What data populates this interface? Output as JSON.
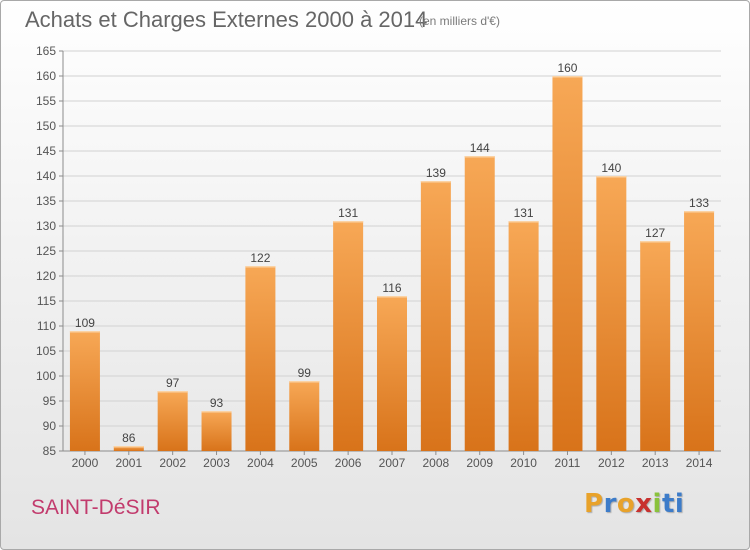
{
  "header": {
    "title": "Achats et Charges Externes 2000 à 2014",
    "subtitle": "(en milliers d'€)"
  },
  "footer": {
    "commune": "SAINT-DéSIR",
    "brand": "Proxiti"
  },
  "colors": {
    "bar_light": "#f7a856",
    "bar_dark": "#d8731a",
    "commune": "#c23b6d",
    "brand_letters": [
      "#e8a22a",
      "#3d7cc9",
      "#e8a22a",
      "#c8322f",
      "#8ac23c",
      "#3d7cc9",
      "#3d7cc9"
    ]
  },
  "chart_data": {
    "type": "bar",
    "title": "Achats et Charges Externes 2000 à 2014",
    "subtitle": "(en milliers d'€)",
    "categories": [
      "2000",
      "2001",
      "2002",
      "2003",
      "2004",
      "2005",
      "2006",
      "2007",
      "2008",
      "2009",
      "2010",
      "2011",
      "2012",
      "2013",
      "2014"
    ],
    "values": [
      109,
      86,
      97,
      93,
      122,
      99,
      131,
      116,
      139,
      144,
      131,
      160,
      140,
      127,
      133
    ],
    "ylim": [
      85,
      165
    ],
    "yticks": [
      85,
      90,
      95,
      100,
      105,
      110,
      115,
      120,
      125,
      130,
      135,
      140,
      145,
      150,
      155,
      160,
      165
    ],
    "grid": true,
    "data_labels": true,
    "legend": "none"
  }
}
